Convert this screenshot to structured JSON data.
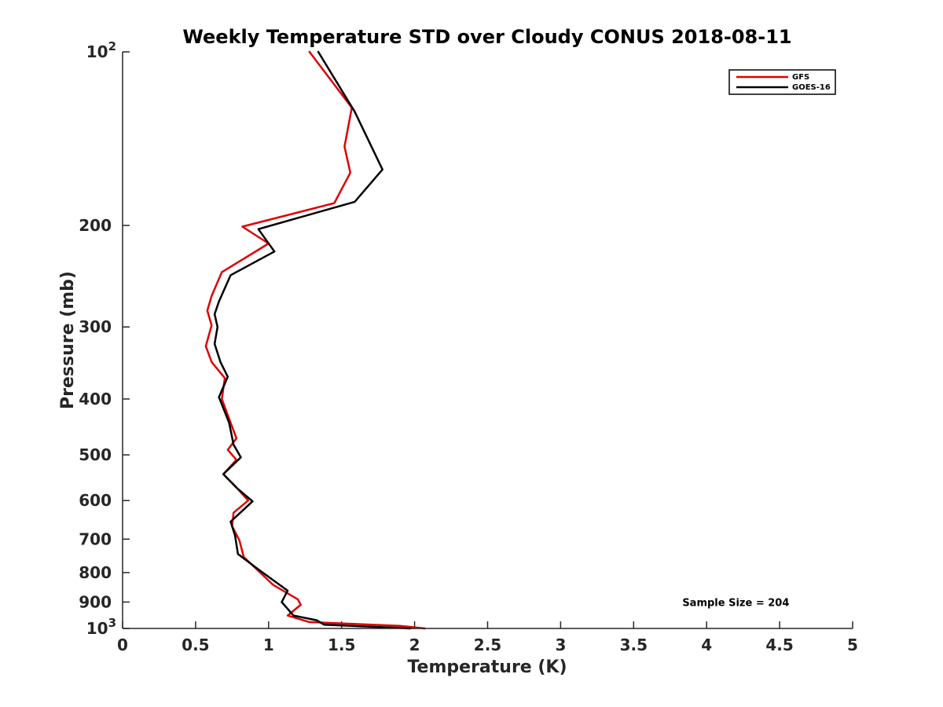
{
  "chart_data": {
    "type": "line",
    "title": "Weekly Temperature STD over Cloudy CONUS 2018-08-11",
    "xlabel": "Temperature (K)",
    "ylabel": "Pressure (mb)",
    "xlim": [
      0,
      5
    ],
    "ylim": [
      100,
      1000
    ],
    "y_scale": "log",
    "y_reversed": true,
    "grid": false,
    "legend_position": "top-right",
    "x_ticks": [
      {
        "value": 0,
        "label": "0"
      },
      {
        "value": 0.5,
        "label": "0.5"
      },
      {
        "value": 1,
        "label": "1"
      },
      {
        "value": 1.5,
        "label": "1.5"
      },
      {
        "value": 2,
        "label": "2"
      },
      {
        "value": 2.5,
        "label": "2.5"
      },
      {
        "value": 3,
        "label": "3"
      },
      {
        "value": 3.5,
        "label": "3.5"
      },
      {
        "value": 4,
        "label": "4"
      },
      {
        "value": 4.5,
        "label": "4.5"
      },
      {
        "value": 5,
        "label": "5"
      }
    ],
    "y_ticks": [
      {
        "value": 100,
        "base": "10",
        "exp": "2"
      },
      {
        "value": 200,
        "label": "200"
      },
      {
        "value": 300,
        "label": "300"
      },
      {
        "value": 400,
        "label": "400"
      },
      {
        "value": 500,
        "label": "500"
      },
      {
        "value": 600,
        "label": "600"
      },
      {
        "value": 700,
        "label": "700"
      },
      {
        "value": 800,
        "label": "800"
      },
      {
        "value": 900,
        "label": "900"
      },
      {
        "value": 1000,
        "base": "10",
        "exp": "3"
      }
    ],
    "series": [
      {
        "name": "GFS",
        "color": "#e00000",
        "points": [
          [
            1.28,
            100
          ],
          [
            1.57,
            125
          ],
          [
            1.52,
            146
          ],
          [
            1.56,
            162
          ],
          [
            1.45,
            183
          ],
          [
            0.82,
            201
          ],
          [
            1.0,
            215
          ],
          [
            0.68,
            241
          ],
          [
            0.61,
            265
          ],
          [
            0.58,
            281
          ],
          [
            0.61,
            298
          ],
          [
            0.57,
            324
          ],
          [
            0.61,
            345
          ],
          [
            0.7,
            368
          ],
          [
            0.68,
            400
          ],
          [
            0.74,
            440
          ],
          [
            0.78,
            468
          ],
          [
            0.72,
            490
          ],
          [
            0.78,
            510
          ],
          [
            0.69,
            540
          ],
          [
            0.77,
            566
          ],
          [
            0.86,
            600
          ],
          [
            0.76,
            630
          ],
          [
            0.75,
            665
          ],
          [
            0.8,
            703
          ],
          [
            0.83,
            752
          ],
          [
            0.92,
            790
          ],
          [
            1.03,
            840
          ],
          [
            1.2,
            890
          ],
          [
            1.22,
            910
          ],
          [
            1.13,
            950
          ],
          [
            1.28,
            975
          ],
          [
            1.9,
            990
          ],
          [
            2.07,
            1000
          ]
        ]
      },
      {
        "name": "GOES-16",
        "color": "#000000",
        "points": [
          [
            1.34,
            100
          ],
          [
            1.59,
            127
          ],
          [
            1.78,
            160
          ],
          [
            1.59,
            182
          ],
          [
            0.93,
            203
          ],
          [
            1.04,
            222
          ],
          [
            0.74,
            244
          ],
          [
            0.66,
            271
          ],
          [
            0.63,
            285
          ],
          [
            0.65,
            300
          ],
          [
            0.63,
            321
          ],
          [
            0.67,
            345
          ],
          [
            0.72,
            366
          ],
          [
            0.66,
            397
          ],
          [
            0.73,
            440
          ],
          [
            0.76,
            480
          ],
          [
            0.81,
            505
          ],
          [
            0.69,
            540
          ],
          [
            0.78,
            570
          ],
          [
            0.89,
            602
          ],
          [
            0.74,
            653
          ],
          [
            0.77,
            690
          ],
          [
            0.79,
            743
          ],
          [
            0.93,
            790
          ],
          [
            1.13,
            860
          ],
          [
            1.09,
            900
          ],
          [
            1.17,
            950
          ],
          [
            1.33,
            968
          ],
          [
            1.38,
            985
          ],
          [
            1.97,
            1000
          ]
        ]
      }
    ],
    "annotations": [
      {
        "text": "Sample Size = 204",
        "x": 4.2,
        "y": 900
      }
    ]
  }
}
